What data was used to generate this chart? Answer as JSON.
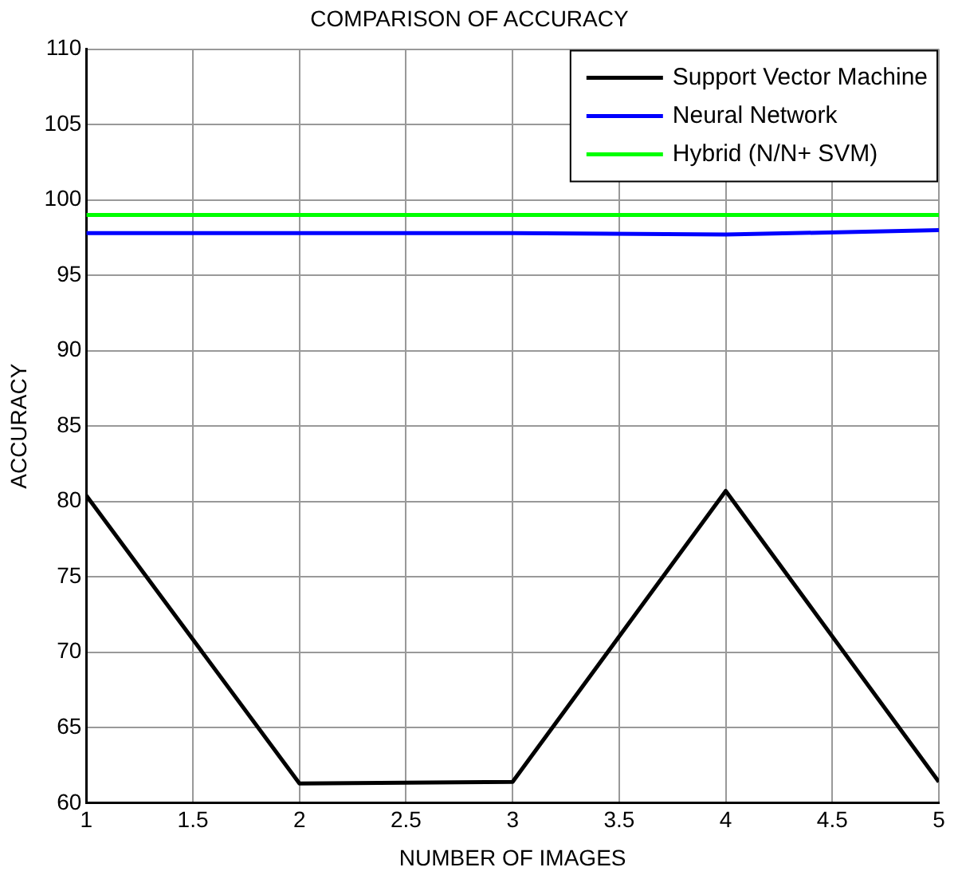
{
  "chart_data": {
    "type": "line",
    "title": "COMPARISON OF ACCURACY",
    "xlabel": "NUMBER OF IMAGES",
    "ylabel": "ACCURACY",
    "x": [
      1,
      2,
      3,
      4,
      5
    ],
    "series": [
      {
        "name": "Support Vector Machine",
        "color": "#000000",
        "values": [
          80.4,
          61.3,
          61.4,
          80.7,
          61.4
        ]
      },
      {
        "name": "Neural Network",
        "color": "#0000ff",
        "values": [
          97.8,
          97.8,
          97.8,
          97.7,
          98.0
        ]
      },
      {
        "name": "Hybrid (N/N+ SVM)",
        "color": "#00ff00",
        "values": [
          99,
          99,
          99,
          99,
          99
        ]
      }
    ],
    "xlim": [
      1,
      5
    ],
    "xticks": [
      1,
      1.5,
      2,
      2.5,
      3,
      3.5,
      4,
      4.5,
      5
    ],
    "ylim": [
      60,
      110
    ],
    "yticks": [
      60,
      65,
      70,
      75,
      80,
      85,
      90,
      95,
      100,
      105,
      110
    ],
    "grid": true,
    "legend": "top right",
    "marker": "none",
    "line_style": "solid"
  }
}
